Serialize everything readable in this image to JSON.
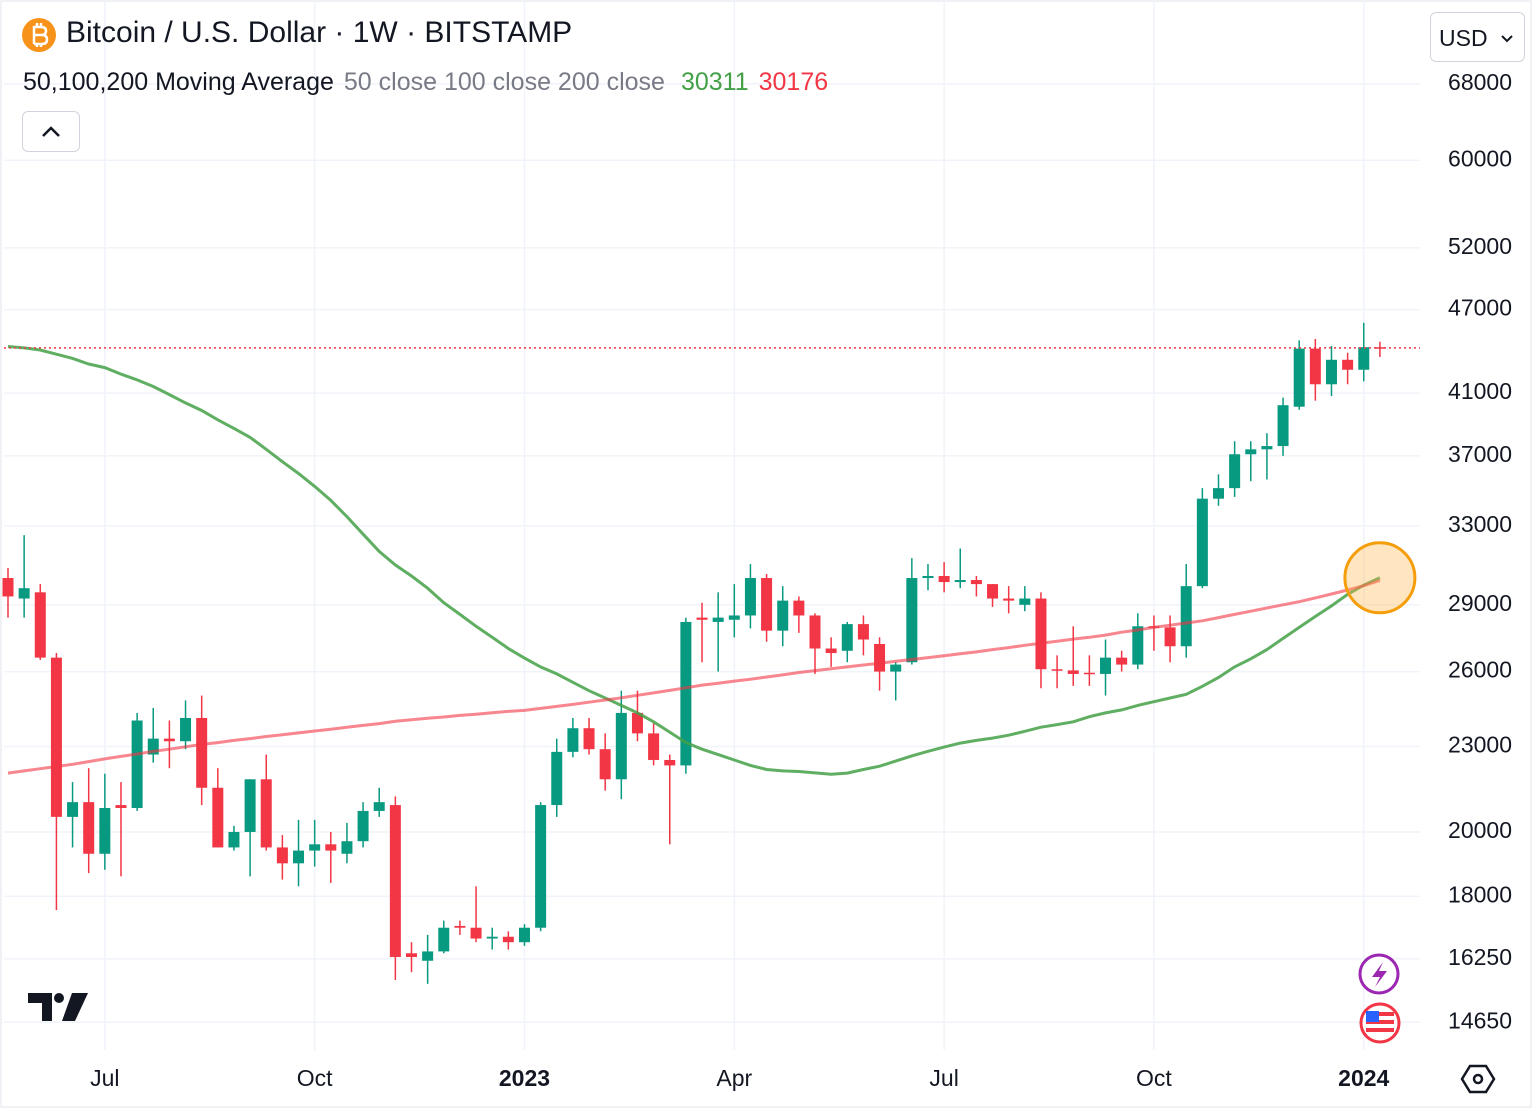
{
  "chart_data": {
    "type": "candlestick",
    "title": "Bitcoin / U.S. Dollar · 1W · BITSTAMP",
    "indicator": "50,100,200 Moving Average",
    "indicator_params": "50 close 100 close 200 close",
    "currency": "USD",
    "up_color": "#089981",
    "down_color": "#f23645",
    "log_scale": true,
    "grid": true,
    "categories": [
      null,
      null,
      null,
      null,
      null,
      null,
      "Jul",
      null,
      null,
      null,
      null,
      null,
      null,
      null,
      null,
      null,
      null,
      null,
      null,
      "Oct",
      null,
      null,
      null,
      null,
      null,
      null,
      null,
      null,
      null,
      null,
      null,
      null,
      "2023",
      null,
      null,
      null,
      null,
      null,
      null,
      null,
      null,
      null,
      null,
      null,
      null,
      "Apr",
      null,
      null,
      null,
      null,
      null,
      null,
      null,
      null,
      null,
      null,
      null,
      null,
      "Jul",
      null,
      null,
      null,
      null,
      null,
      null,
      null,
      null,
      null,
      null,
      null,
      null,
      "Oct",
      null,
      null,
      null,
      null,
      null,
      null,
      null,
      null,
      null,
      null,
      null,
      null,
      "2024",
      null
    ],
    "open": [
      30300,
      29300,
      29600,
      26600,
      20500,
      21000,
      19300,
      20900,
      20800,
      22700,
      23300,
      23200,
      24100,
      21500,
      19500,
      20000,
      21800,
      19500,
      19000,
      19400,
      19600,
      19300,
      19700,
      20700,
      20900,
      16400,
      16200,
      16450,
      17150,
      17100,
      16800,
      16850,
      16700,
      17100,
      20900,
      22800,
      23700,
      22900,
      21800,
      24300,
      23500,
      22500,
      22300,
      28400,
      28200,
      28300,
      28500,
      30300,
      27800,
      29200,
      28500,
      27000,
      26900,
      28100,
      27200,
      26000,
      26400,
      30300,
      30400,
      30100,
      30200,
      30000,
      29300,
      29000,
      29300,
      26100,
      26050,
      25950,
      25900,
      26600,
      26300,
      28000,
      27950,
      27100,
      29900,
      34500,
      35100,
      37100,
      37400,
      37600,
      40100,
      44100,
      41600,
      43300,
      42600,
      44200
    ],
    "high": [
      30800,
      32500,
      30000,
      26800,
      21700,
      22200,
      22000,
      21700,
      24300,
      24500,
      24000,
      24800,
      25000,
      22200,
      20200,
      21800,
      22700,
      19900,
      20400,
      20400,
      20000,
      20300,
      21000,
      21500,
      21200,
      16700,
      16900,
      17300,
      17300,
      18300,
      17100,
      17000,
      17200,
      21000,
      23300,
      24100,
      24100,
      23500,
      25200,
      25200,
      23900,
      22700,
      28400,
      29100,
      29600,
      30000,
      31000,
      30500,
      29900,
      29400,
      28600,
      27500,
      28200,
      28500,
      27500,
      26400,
      31300,
      31000,
      31100,
      31800,
      30400,
      30000,
      29900,
      29900,
      29600,
      26700,
      28000,
      26700,
      27400,
      26900,
      28600,
      28500,
      28500,
      31000,
      35100,
      35900,
      37900,
      37900,
      38400,
      40700,
      44700,
      44800,
      44300,
      43800,
      46000,
      44600
    ],
    "low": [
      28400,
      28400,
      26500,
      17600,
      19500,
      18700,
      18800,
      18600,
      20700,
      22400,
      22200,
      22900,
      20900,
      19500,
      19400,
      18600,
      19400,
      18500,
      18300,
      18900,
      18400,
      19000,
      19500,
      20500,
      15700,
      15900,
      15600,
      16400,
      16900,
      16700,
      16500,
      16500,
      16600,
      17000,
      20500,
      22600,
      22700,
      21400,
      21100,
      23200,
      22300,
      19600,
      22000,
      26400,
      26000,
      27500,
      27900,
      27300,
      27100,
      27700,
      25900,
      26200,
      26400,
      26700,
      25200,
      24800,
      26300,
      29700,
      29600,
      29800,
      29400,
      28900,
      28600,
      28700,
      25300,
      25300,
      25400,
      25400,
      25000,
      26000,
      26100,
      26900,
      26400,
      26600,
      29800,
      34100,
      34600,
      35500,
      35600,
      37000,
      39900,
      40500,
      40800,
      41600,
      41800,
      43500
    ],
    "close": [
      29400,
      29800,
      26600,
      20500,
      21000,
      19300,
      20800,
      20800,
      24000,
      23300,
      23200,
      24100,
      21500,
      19500,
      20000,
      21800,
      19500,
      19000,
      19400,
      19600,
      19400,
      19700,
      20700,
      21000,
      16300,
      16300,
      16450,
      17100,
      17100,
      16800,
      16850,
      16700,
      17100,
      20900,
      22800,
      23700,
      22900,
      21800,
      24300,
      23500,
      22500,
      22300,
      28200,
      28300,
      28400,
      28500,
      30300,
      27800,
      29200,
      28500,
      27000,
      26800,
      28100,
      27400,
      26000,
      26300,
      30300,
      30400,
      30100,
      30200,
      30000,
      29300,
      29200,
      29300,
      26100,
      26050,
      25900,
      25900,
      26600,
      26300,
      28000,
      27950,
      27100,
      29900,
      34500,
      35100,
      37100,
      37400,
      37600,
      40200,
      44100,
      41600,
      43300,
      42600,
      44200,
      44150
    ],
    "series": [
      {
        "color": "#43a047",
        "values": [
          44250,
          44150,
          44000,
          43700,
          43400,
          43000,
          42750,
          42300,
          41900,
          41450,
          40900,
          40350,
          39850,
          39250,
          38700,
          38140,
          37400,
          36650,
          35950,
          35200,
          34400,
          33500,
          32550,
          31650,
          30950,
          30400,
          29800,
          29100,
          28550,
          28000,
          27500,
          27000,
          26580,
          26200,
          25900,
          25550,
          25200,
          24900,
          24600,
          24300,
          23950,
          23550,
          23150,
          22900,
          22700,
          22500,
          22300,
          22150,
          22100,
          22080,
          22030,
          21980,
          22020,
          22150,
          22270,
          22460,
          22650,
          22820,
          22980,
          23130,
          23230,
          23320,
          23430,
          23580,
          23740,
          23840,
          23950,
          24150,
          24300,
          24420,
          24600,
          24750,
          24900,
          25050,
          25380,
          25750,
          26200,
          26550,
          26950,
          27450,
          27950,
          28450,
          28950,
          29500,
          29950,
          30311
        ]
      },
      {
        "color": "#f23645",
        "values": [
          22020,
          22100,
          22180,
          22260,
          22340,
          22440,
          22540,
          22630,
          22720,
          22820,
          22900,
          22990,
          23080,
          23150,
          23230,
          23300,
          23380,
          23450,
          23520,
          23590,
          23660,
          23740,
          23810,
          23880,
          23970,
          24030,
          24090,
          24140,
          24200,
          24250,
          24310,
          24360,
          24400,
          24480,
          24560,
          24640,
          24730,
          24820,
          24910,
          25010,
          25110,
          25210,
          25320,
          25430,
          25510,
          25600,
          25680,
          25770,
          25860,
          25960,
          26040,
          26120,
          26200,
          26280,
          26360,
          26440,
          26520,
          26600,
          26680,
          26770,
          26850,
          26950,
          27040,
          27140,
          27230,
          27320,
          27420,
          27500,
          27600,
          27730,
          27830,
          27950,
          28050,
          28150,
          28250,
          28400,
          28550,
          28700,
          28850,
          29000,
          29150,
          29330,
          29520,
          29710,
          29920,
          30176
        ]
      }
    ],
    "ylim": [
      14000,
      78000
    ],
    "yticks": [
      68000,
      60000,
      52000,
      47000,
      41000,
      37000,
      33000,
      29000,
      26000,
      23000,
      20000,
      18000,
      16250,
      14650
    ]
  }
}
